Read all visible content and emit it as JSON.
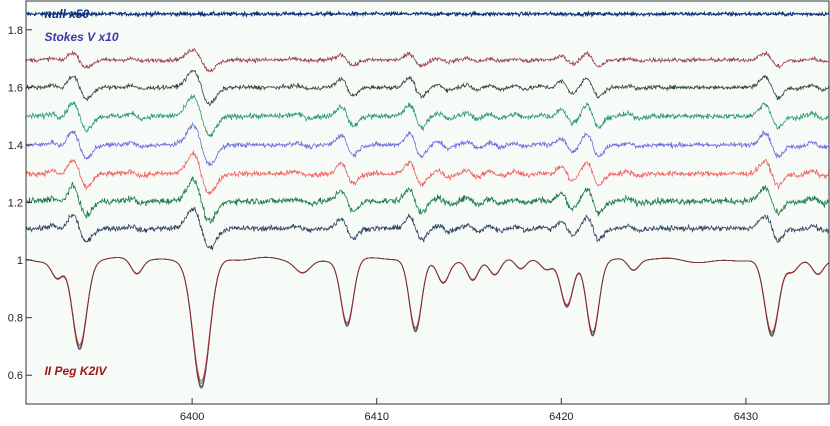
{
  "chart_data": {
    "type": "line",
    "title": "",
    "xlabel": "",
    "ylabel": "",
    "xlim": [
      6391,
      6434.5
    ],
    "ylim": [
      0.5,
      1.9
    ],
    "grid": false,
    "background_color": "#f7fbf7",
    "x_ticks": [
      6400,
      6410,
      6420,
      6430
    ],
    "y_ticks": [
      0.6,
      0.8,
      1,
      1.2,
      1.4,
      1.6,
      1.8
    ],
    "annotations": [
      {
        "text": "null x50",
        "color": "#10337f",
        "x": 6392.0,
        "y": 1.855
      },
      {
        "text": "Stokes V x10",
        "color": "#3a3aa8",
        "x": 6392.0,
        "y": 1.775
      },
      {
        "text": "II Peg K2IV",
        "color": "#a01818",
        "x": 6392.0,
        "y": 0.615
      }
    ],
    "lines": [
      {
        "center": 6393.9,
        "depth": 0.3,
        "width": 0.38
      },
      {
        "center": 6400.5,
        "depth": 0.43,
        "width": 0.45
      },
      {
        "center": 6408.4,
        "depth": 0.22,
        "width": 0.33
      },
      {
        "center": 6412.1,
        "depth": 0.25,
        "width": 0.33
      },
      {
        "center": 6420.3,
        "depth": 0.16,
        "width": 0.33
      },
      {
        "center": 6421.7,
        "depth": 0.25,
        "width": 0.33
      },
      {
        "center": 6431.4,
        "depth": 0.27,
        "width": 0.38
      },
      {
        "center": 6392.7,
        "depth": 0.06,
        "width": 0.3
      },
      {
        "center": 6397.0,
        "depth": 0.05,
        "width": 0.3
      },
      {
        "center": 6406.0,
        "depth": 0.04,
        "width": 0.4
      },
      {
        "center": 6413.6,
        "depth": 0.07,
        "width": 0.3
      },
      {
        "center": 6415.2,
        "depth": 0.07,
        "width": 0.3
      },
      {
        "center": 6416.4,
        "depth": 0.05,
        "width": 0.3
      },
      {
        "center": 6417.8,
        "depth": 0.04,
        "width": 0.3
      },
      {
        "center": 6419.2,
        "depth": 0.03,
        "width": 0.3
      },
      {
        "center": 6423.9,
        "depth": 0.04,
        "width": 0.3
      },
      {
        "center": 6432.5,
        "depth": 0.04,
        "width": 0.3
      },
      {
        "center": 6433.9,
        "depth": 0.05,
        "width": 0.3
      }
    ],
    "series": [
      {
        "role": "null",
        "color": "#0e2f7a",
        "offset": 1.855,
        "noise": 0.006,
        "amp": 0.0
      },
      {
        "role": "stokes_v",
        "color": "#9a3f55",
        "offset": 1.695,
        "noise": 0.007,
        "amp": 0.035
      },
      {
        "role": "stokes_v",
        "color": "#2f4a3a",
        "offset": 1.6,
        "noise": 0.007,
        "amp": 0.055
      },
      {
        "role": "stokes_v",
        "color": "#2f9a72",
        "offset": 1.5,
        "noise": 0.009,
        "amp": 0.065
      },
      {
        "role": "stokes_v",
        "color": "#6b6bdd",
        "offset": 1.4,
        "noise": 0.008,
        "amp": 0.065
      },
      {
        "role": "stokes_v",
        "color": "#f06262",
        "offset": 1.3,
        "noise": 0.009,
        "amp": 0.065
      },
      {
        "role": "stokes_v",
        "color": "#1f7a4e",
        "offset": 1.205,
        "noise": 0.011,
        "amp": 0.07
      },
      {
        "role": "stokes_v",
        "color": "#2e445e",
        "offset": 1.11,
        "noise": 0.009,
        "amp": 0.065
      },
      {
        "role": "intensity",
        "color": "#2ab0b8",
        "offset": 1.0,
        "noise": 0.0,
        "amp": 1.0
      },
      {
        "role": "intensity",
        "color": "#5a5ad0",
        "offset": 1.0,
        "noise": 0.0,
        "amp": 1.02
      },
      {
        "role": "intensity",
        "color": "#2a7a3a",
        "offset": 1.0,
        "noise": 0.0,
        "amp": 0.98
      },
      {
        "role": "intensity",
        "color": "#d04040",
        "offset": 1.0,
        "noise": 0.0,
        "amp": 0.96
      },
      {
        "role": "intensity",
        "color": "#7a2a2a",
        "offset": 1.0,
        "noise": 0.0,
        "amp": 1.01
      }
    ]
  }
}
